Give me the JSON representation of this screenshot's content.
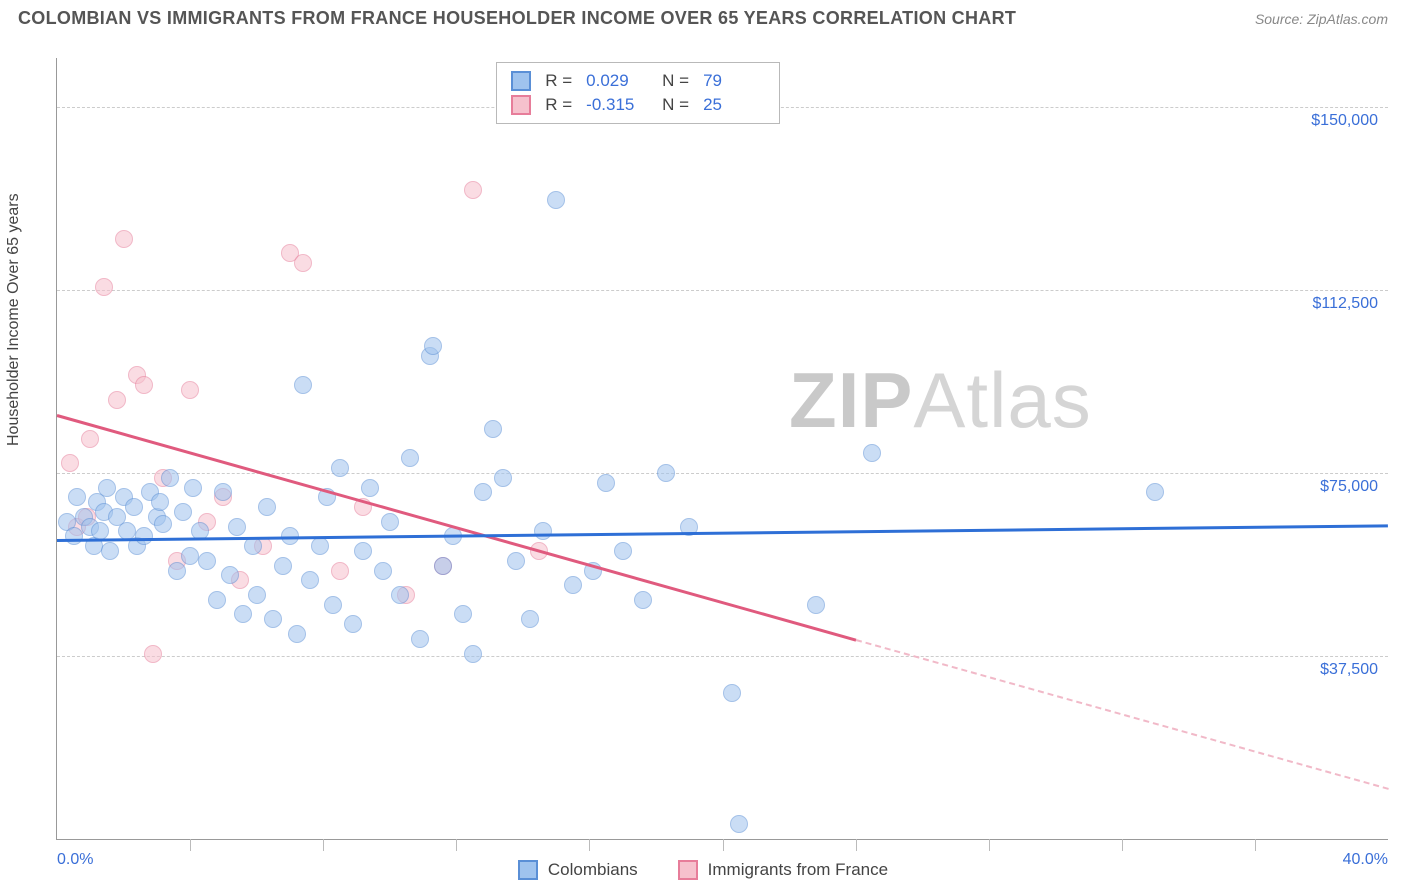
{
  "header": {
    "title": "COLOMBIAN VS IMMIGRANTS FROM FRANCE HOUSEHOLDER INCOME OVER 65 YEARS CORRELATION CHART",
    "source": "Source: ZipAtlas.com"
  },
  "chart": {
    "type": "scatter",
    "xlim": [
      0,
      40
    ],
    "ylim": [
      0,
      160000
    ],
    "background_color": "#ffffff",
    "grid_color": "#cccccc",
    "axis_color": "#999999",
    "y_axis_label": "Householder Income Over 65 years",
    "y_ticks": [
      {
        "v": 37500,
        "label": "$37,500"
      },
      {
        "v": 75000,
        "label": "$75,000"
      },
      {
        "v": 112500,
        "label": "$112,500"
      },
      {
        "v": 150000,
        "label": "$150,000"
      }
    ],
    "x_ticks_minor": [
      4,
      8,
      12,
      16,
      20,
      24,
      28,
      32,
      36
    ],
    "x_min_label": "0.0%",
    "x_max_label": "40.0%",
    "marker_radius": 9,
    "marker_opacity": 0.55,
    "watermark": {
      "text_bold": "ZIP",
      "text_rest": "Atlas",
      "color": "#d5d5d5"
    }
  },
  "series": {
    "a": {
      "label": "Colombians",
      "color_fill": "#9fc3ee",
      "color_stroke": "#5a8fd6",
      "R": "0.029",
      "N": "79",
      "regression": {
        "x1": 0,
        "y1": 61500,
        "x2": 40,
        "y2": 64500,
        "color": "#2e6fd6",
        "width": 3
      },
      "points": [
        [
          0.3,
          65000
        ],
        [
          0.5,
          62000
        ],
        [
          0.6,
          70000
        ],
        [
          0.8,
          66000
        ],
        [
          1.0,
          64000
        ],
        [
          1.1,
          60000
        ],
        [
          1.2,
          69000
        ],
        [
          1.3,
          63000
        ],
        [
          1.4,
          67000
        ],
        [
          1.5,
          72000
        ],
        [
          1.6,
          59000
        ],
        [
          1.8,
          66000
        ],
        [
          2.0,
          70000
        ],
        [
          2.1,
          63000
        ],
        [
          2.3,
          68000
        ],
        [
          2.4,
          60000
        ],
        [
          2.6,
          62000
        ],
        [
          2.8,
          71000
        ],
        [
          3.0,
          66000
        ],
        [
          3.1,
          69000
        ],
        [
          3.2,
          64500
        ],
        [
          3.4,
          74000
        ],
        [
          3.6,
          55000
        ],
        [
          3.8,
          67000
        ],
        [
          4.0,
          58000
        ],
        [
          4.1,
          72000
        ],
        [
          4.3,
          63000
        ],
        [
          4.5,
          57000
        ],
        [
          4.8,
          49000
        ],
        [
          5.0,
          71000
        ],
        [
          5.2,
          54000
        ],
        [
          5.4,
          64000
        ],
        [
          5.6,
          46000
        ],
        [
          5.9,
          60000
        ],
        [
          6.0,
          50000
        ],
        [
          6.3,
          68000
        ],
        [
          6.5,
          45000
        ],
        [
          6.8,
          56000
        ],
        [
          7.0,
          62000
        ],
        [
          7.2,
          42000
        ],
        [
          7.4,
          93000
        ],
        [
          7.6,
          53000
        ],
        [
          7.9,
          60000
        ],
        [
          8.1,
          70000
        ],
        [
          8.3,
          48000
        ],
        [
          8.5,
          76000
        ],
        [
          8.9,
          44000
        ],
        [
          9.2,
          59000
        ],
        [
          9.4,
          72000
        ],
        [
          9.8,
          55000
        ],
        [
          10.0,
          65000
        ],
        [
          10.3,
          50000
        ],
        [
          10.6,
          78000
        ],
        [
          10.9,
          41000
        ],
        [
          11.2,
          99000
        ],
        [
          11.3,
          101000
        ],
        [
          11.6,
          56000
        ],
        [
          11.9,
          62000
        ],
        [
          12.2,
          46000
        ],
        [
          12.5,
          38000
        ],
        [
          12.8,
          71000
        ],
        [
          13.1,
          84000
        ],
        [
          13.4,
          74000
        ],
        [
          13.8,
          57000
        ],
        [
          14.2,
          45000
        ],
        [
          14.6,
          63000
        ],
        [
          15.0,
          131000
        ],
        [
          15.5,
          52000
        ],
        [
          16.1,
          55000
        ],
        [
          16.5,
          73000
        ],
        [
          17.0,
          59000
        ],
        [
          17.6,
          49000
        ],
        [
          18.3,
          75000
        ],
        [
          19.0,
          64000
        ],
        [
          20.3,
          30000
        ],
        [
          20.5,
          3000
        ],
        [
          22.8,
          48000
        ],
        [
          24.5,
          79000
        ],
        [
          33.0,
          71000
        ]
      ]
    },
    "b": {
      "label": "Immigants from France",
      "legend_label": "Immigrants from France",
      "color_fill": "#f6c1cd",
      "color_stroke": "#e77d9a",
      "R": "-0.315",
      "N": "25",
      "regression_solid": {
        "x1": 0,
        "y1": 87000,
        "x2": 24,
        "y2": 41000,
        "color": "#e05a7e",
        "width": 3
      },
      "regression_dashed": {
        "x1": 24,
        "y1": 41000,
        "x2": 40,
        "y2": 10500,
        "color": "#f1b9c8",
        "width": 2
      },
      "points": [
        [
          0.4,
          77000
        ],
        [
          0.6,
          64000
        ],
        [
          0.9,
          66000
        ],
        [
          1.0,
          82000
        ],
        [
          1.4,
          113000
        ],
        [
          1.8,
          90000
        ],
        [
          2.0,
          123000
        ],
        [
          2.4,
          95000
        ],
        [
          2.6,
          93000
        ],
        [
          2.9,
          38000
        ],
        [
          3.2,
          74000
        ],
        [
          3.6,
          57000
        ],
        [
          4.0,
          92000
        ],
        [
          4.5,
          65000
        ],
        [
          5.0,
          70000
        ],
        [
          5.5,
          53000
        ],
        [
          6.2,
          60000
        ],
        [
          7.0,
          120000
        ],
        [
          7.4,
          118000
        ],
        [
          8.5,
          55000
        ],
        [
          9.2,
          68000
        ],
        [
          10.5,
          50000
        ],
        [
          11.6,
          56000
        ],
        [
          12.5,
          133000
        ],
        [
          14.5,
          59000
        ]
      ]
    }
  },
  "top_legend": {
    "r_label": "R  =",
    "n_label": "N  ="
  }
}
